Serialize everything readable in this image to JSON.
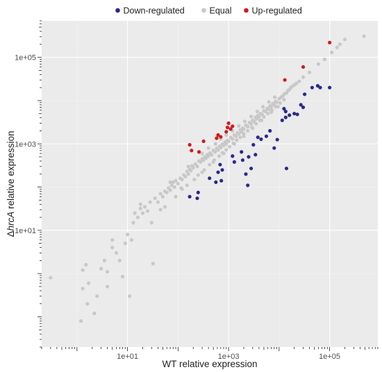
{
  "chart_data": {
    "type": "scatter",
    "xlabel": "WT relative expression",
    "ylabel_prefix": "Δ",
    "ylabel_gene": "hrcA",
    "ylabel_suffix": " relative expression",
    "x_scale": "log10",
    "y_scale": "log10",
    "xlim": [
      0.2,
      900000
    ],
    "ylim": [
      0.02,
      700000
    ],
    "xticks": [
      {
        "value": 10,
        "label": "1e+01"
      },
      {
        "value": 1000,
        "label": "1e+03"
      },
      {
        "value": 100000,
        "label": "1e+05"
      }
    ],
    "yticks": [
      {
        "value": 10,
        "label": "1e+01"
      },
      {
        "value": 1000,
        "label": "1e+03"
      },
      {
        "value": 100000,
        "label": "1e+05"
      }
    ],
    "grid": true,
    "legend_position": "top",
    "legend": [
      {
        "name": "Down-regulated",
        "color": "#2b2a8c"
      },
      {
        "name": "Equal",
        "color": "#c8c8c8"
      },
      {
        "name": "Up-regulated",
        "color": "#d31a1a"
      }
    ],
    "series": [
      {
        "name": "Equal",
        "color": "#c8c8c8",
        "points": [
          [
            0.3,
            0.8
          ],
          [
            1.2,
            0.08
          ],
          [
            1.3,
            0.45
          ],
          [
            1.3,
            1.2
          ],
          [
            1.5,
            1.6
          ],
          [
            1.6,
            0.2
          ],
          [
            1.7,
            0.6
          ],
          [
            2.2,
            0.12
          ],
          [
            2.5,
            0.3
          ],
          [
            3,
            1.3
          ],
          [
            3.5,
            2
          ],
          [
            4,
            1.1
          ],
          [
            4,
            0.5
          ],
          [
            5,
            4
          ],
          [
            5,
            6
          ],
          [
            6,
            3
          ],
          [
            7,
            2
          ],
          [
            8,
            0.85
          ],
          [
            9,
            5
          ],
          [
            10,
            8
          ],
          [
            11,
            0.3
          ],
          [
            12,
            6
          ],
          [
            13,
            15
          ],
          [
            14,
            25
          ],
          [
            16,
            20
          ],
          [
            18,
            32
          ],
          [
            20,
            25
          ],
          [
            22,
            35
          ],
          [
            25,
            28
          ],
          [
            28,
            45
          ],
          [
            32,
            1.7
          ],
          [
            35,
            55
          ],
          [
            40,
            45
          ],
          [
            45,
            70
          ],
          [
            50,
            60
          ],
          [
            55,
            80
          ],
          [
            60,
            75
          ],
          [
            65,
            95
          ],
          [
            70,
            85
          ],
          [
            75,
            110
          ],
          [
            80,
            130
          ],
          [
            85,
            100
          ],
          [
            90,
            140
          ],
          [
            100,
            120
          ],
          [
            110,
            160
          ],
          [
            115,
            95
          ],
          [
            120,
            150
          ],
          [
            130,
            190
          ],
          [
            140,
            175
          ],
          [
            150,
            230
          ],
          [
            160,
            200
          ],
          [
            170,
            260
          ],
          [
            180,
            240
          ],
          [
            190,
            310
          ],
          [
            200,
            280
          ],
          [
            220,
            340
          ],
          [
            240,
            300
          ],
          [
            260,
            400
          ],
          [
            280,
            380
          ],
          [
            300,
            450
          ],
          [
            320,
            420
          ],
          [
            340,
            500
          ],
          [
            360,
            470
          ],
          [
            380,
            560
          ],
          [
            400,
            520
          ],
          [
            430,
            610
          ],
          [
            460,
            560
          ],
          [
            500,
            700
          ],
          [
            540,
            650
          ],
          [
            580,
            780
          ],
          [
            620,
            720
          ],
          [
            660,
            880
          ],
          [
            700,
            820
          ],
          [
            750,
            980
          ],
          [
            800,
            920
          ],
          [
            850,
            1100
          ],
          [
            900,
            1000
          ],
          [
            950,
            1200
          ],
          [
            1000,
            1150
          ],
          [
            1100,
            1400
          ],
          [
            1200,
            1300
          ],
          [
            1300,
            1600
          ],
          [
            1400,
            1500
          ],
          [
            1500,
            1800
          ],
          [
            1600,
            1700
          ],
          [
            1700,
            2100
          ],
          [
            1800,
            1900
          ],
          [
            1900,
            2300
          ],
          [
            2000,
            2200
          ],
          [
            2200,
            2700
          ],
          [
            2400,
            2500
          ],
          [
            2600,
            3100
          ],
          [
            2800,
            2900
          ],
          [
            3000,
            3500
          ],
          [
            3200,
            3300
          ],
          [
            3400,
            4100
          ],
          [
            3600,
            3800
          ],
          [
            3800,
            4500
          ],
          [
            4000,
            4200
          ],
          [
            4300,
            5000
          ],
          [
            4600,
            4800
          ],
          [
            5000,
            5800
          ],
          [
            5400,
            5600
          ],
          [
            5800,
            6600
          ],
          [
            6200,
            6300
          ],
          [
            6600,
            7500
          ],
          [
            7000,
            7100
          ],
          [
            7500,
            8500
          ],
          [
            8000,
            8000
          ],
          [
            8500,
            9500
          ],
          [
            9000,
            9200
          ],
          [
            10000,
            11000
          ],
          [
            11000,
            12000
          ],
          [
            12000,
            13000
          ],
          [
            13000,
            14500
          ],
          [
            14000,
            15000
          ],
          [
            15000,
            17000
          ],
          [
            16000,
            18000
          ],
          [
            17000,
            20000
          ],
          [
            18000,
            21000
          ],
          [
            20000,
            23000
          ],
          [
            22000,
            25000
          ],
          [
            25000,
            28000
          ],
          [
            30000,
            35000
          ],
          [
            40000,
            45000
          ],
          [
            60000,
            70000
          ],
          [
            80000,
            90000
          ],
          [
            110000,
            130000
          ],
          [
            140000,
            170000
          ],
          [
            160000,
            200000
          ],
          [
            200000,
            260000
          ],
          [
            480000,
            310000
          ],
          [
            18,
            40
          ],
          [
            30,
            15
          ],
          [
            45,
            30
          ],
          [
            55,
            35
          ],
          [
            70,
            130
          ],
          [
            90,
            60
          ],
          [
            120,
            90
          ],
          [
            150,
            110
          ],
          [
            160,
            300
          ],
          [
            210,
            150
          ],
          [
            250,
            190
          ],
          [
            330,
            250
          ],
          [
            420,
            330
          ],
          [
            520,
            420
          ],
          [
            650,
            520
          ],
          [
            760,
            620
          ],
          [
            900,
            730
          ],
          [
            1050,
            860
          ],
          [
            1250,
            1030
          ],
          [
            1450,
            1220
          ],
          [
            1700,
            1420
          ],
          [
            2000,
            1700
          ],
          [
            2400,
            2000
          ],
          [
            2900,
            2400
          ],
          [
            3500,
            2900
          ],
          [
            4200,
            3500
          ],
          [
            5000,
            4200
          ],
          [
            6000,
            5000
          ],
          [
            7200,
            6000
          ],
          [
            8600,
            7200
          ],
          [
            10500,
            8800
          ],
          [
            12500,
            10500
          ],
          [
            300,
            600
          ],
          [
            400,
            800
          ],
          [
            550,
            1000
          ],
          [
            700,
            1300
          ],
          [
            900,
            1600
          ],
          [
            1200,
            2000
          ],
          [
            1600,
            2600
          ],
          [
            2100,
            3300
          ],
          [
            2800,
            4300
          ],
          [
            3700,
            5600
          ],
          [
            4800,
            7200
          ],
          [
            6300,
            9300
          ],
          [
            8200,
            12000
          ],
          [
            300,
            220
          ],
          [
            500,
            380
          ],
          [
            800,
            600
          ],
          [
            1300,
            1000
          ],
          [
            2000,
            1500
          ],
          [
            3000,
            2300
          ],
          [
            4500,
            3500
          ],
          [
            7000,
            5400
          ],
          [
            9500,
            7300
          ]
        ]
      },
      {
        "name": "Down-regulated",
        "color": "#2b2a8c",
        "points": [
          [
            170,
            60
          ],
          [
            240,
            55
          ],
          [
            250,
            75
          ],
          [
            420,
            160
          ],
          [
            560,
            130
          ],
          [
            620,
            220
          ],
          [
            680,
            330
          ],
          [
            720,
            140
          ],
          [
            750,
            250
          ],
          [
            1200,
            520
          ],
          [
            1300,
            380
          ],
          [
            1800,
            650
          ],
          [
            1900,
            420
          ],
          [
            2200,
            200
          ],
          [
            2400,
            110
          ],
          [
            2500,
            500
          ],
          [
            2800,
            270
          ],
          [
            3100,
            950
          ],
          [
            3400,
            560
          ],
          [
            3800,
            1420
          ],
          [
            4400,
            1280
          ],
          [
            5600,
            1500
          ],
          [
            6600,
            2000
          ],
          [
            8000,
            800
          ],
          [
            9200,
            1250
          ],
          [
            11500,
            3500
          ],
          [
            12500,
            6500
          ],
          [
            13500,
            5600
          ],
          [
            13500,
            4100
          ],
          [
            14000,
            270
          ],
          [
            16000,
            4600
          ],
          [
            20000,
            5000
          ],
          [
            23000,
            4800
          ],
          [
            27000,
            8000
          ],
          [
            30000,
            7000
          ],
          [
            32000,
            14000
          ],
          [
            45000,
            20000
          ],
          [
            58000,
            22000
          ],
          [
            65000,
            20000
          ],
          [
            100000,
            20000
          ]
        ]
      },
      {
        "name": "Up-regulated",
        "color": "#d31a1a",
        "points": [
          [
            170,
            950
          ],
          [
            185,
            700
          ],
          [
            260,
            650
          ],
          [
            320,
            1150
          ],
          [
            580,
            1350
          ],
          [
            620,
            1600
          ],
          [
            700,
            1450
          ],
          [
            900,
            1900
          ],
          [
            950,
            2400
          ],
          [
            1000,
            3000
          ],
          [
            1100,
            2200
          ],
          [
            1200,
            2550
          ],
          [
            13000,
            30000
          ],
          [
            30000,
            60000
          ],
          [
            100000,
            220000
          ]
        ]
      }
    ]
  }
}
